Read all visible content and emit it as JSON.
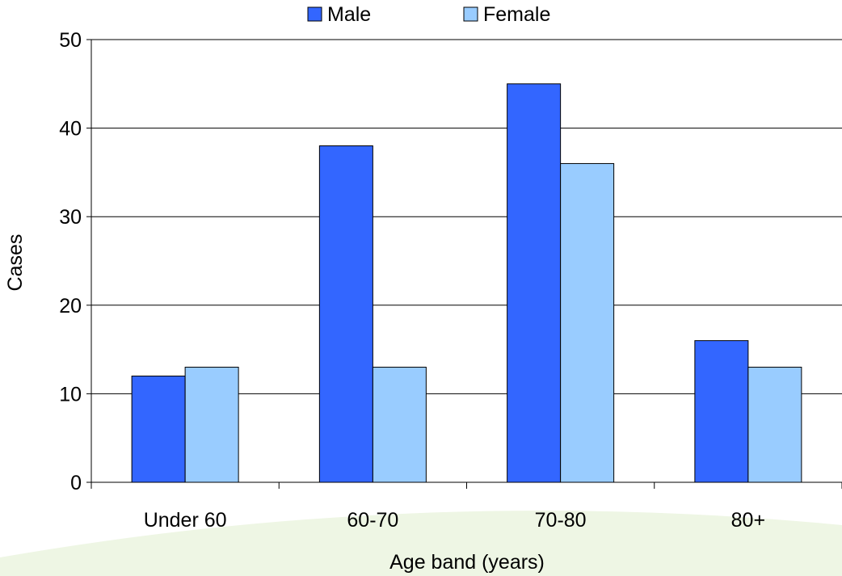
{
  "chart_data": {
    "type": "bar",
    "title": "",
    "xlabel": "Age band (years)",
    "ylabel": "Cases",
    "categories": [
      "Under 60",
      "60-70",
      "70-80",
      "80+"
    ],
    "series": [
      {
        "name": "Male",
        "values": [
          12,
          38,
          45,
          16
        ],
        "color": "#3366FF"
      },
      {
        "name": "Female",
        "values": [
          13,
          13,
          36,
          13
        ],
        "color": "#99CCFF"
      }
    ],
    "ylim": [
      0,
      50
    ],
    "yticks": [
      0,
      10,
      20,
      30,
      40,
      50
    ],
    "grid": true,
    "legend": "top-center"
  },
  "colors": {
    "background_swoosh": "#EEF6E4",
    "gridline": "#000000"
  }
}
